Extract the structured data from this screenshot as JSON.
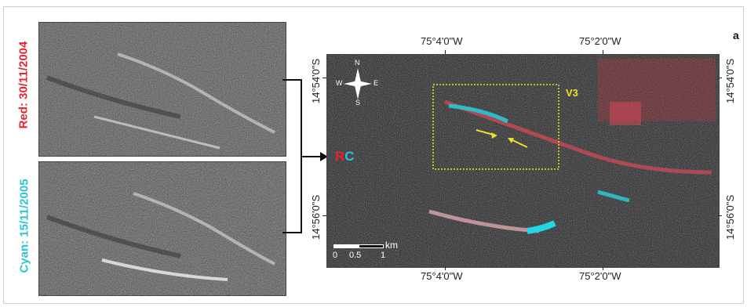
{
  "figure": {
    "panel_letter": "a",
    "colors": {
      "red": "#e8232b",
      "cyan": "#26c6d4",
      "yellow": "#e7e22a",
      "frame": "#cfcfcf"
    }
  },
  "left_panels": [
    {
      "label": "Red: 30/11/2004",
      "color": "#e8232b"
    },
    {
      "label": "Cyan: 15/11/2005",
      "color": "#26c6d4"
    }
  ],
  "composite": {
    "rc_label": {
      "r": "R",
      "c": "C"
    },
    "top_longitudes": [
      "75°4'0\"W",
      "75°2'0\"W"
    ],
    "bottom_longitudes": [
      "75°4'0\"W",
      "75°2'0\"W"
    ],
    "left_latitudes": [
      "14°54'0\"S",
      "14°56'0\"S"
    ],
    "right_latitudes": [
      "14°54'0\"S",
      "14°56'0\"S"
    ],
    "inset_label": "V3",
    "compass": {
      "n": "N",
      "s": "S",
      "e": "E",
      "w": "W"
    },
    "scale_bar": {
      "unit": "km",
      "ticks": [
        "0",
        "0.5",
        "1"
      ]
    }
  }
}
